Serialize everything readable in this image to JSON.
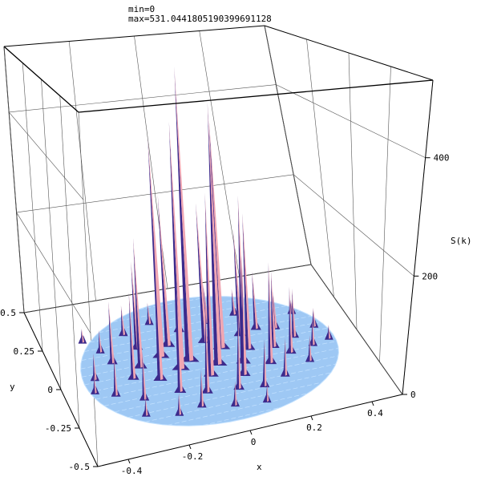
{
  "header": {
    "min_text": "min=0",
    "max_text": "max=531.0441805190399691128"
  },
  "colors": {
    "base": "#9ec8f4",
    "base_light": "#c4e2ff",
    "spike_light": "#f0a6b2",
    "spike_dark": "#3c2a8c",
    "spike_mid": "#8a6fc0",
    "axis": "#000000",
    "grid": "#555555"
  },
  "chart_data": {
    "type": "surface3d",
    "title": "",
    "xlabel": "x",
    "ylabel": "y",
    "zlabel": "S(k)",
    "xlim": [
      -0.5,
      0.5
    ],
    "ylim": [
      -0.5,
      0.5
    ],
    "zlim": [
      0,
      531.04418051904
    ],
    "x_ticks": [
      "-0.4",
      "-0.2",
      "0",
      "0.2",
      "0.4"
    ],
    "y_ticks": [
      "-0.5",
      "-0.25",
      "0",
      "0.25",
      "0.5"
    ],
    "z_ticks": [
      "0",
      "200",
      "400"
    ],
    "grid": true,
    "spikes": [
      {
        "x": -0.06,
        "y": 0.02,
        "z": 531
      },
      {
        "x": 0.02,
        "y": -0.04,
        "z": 470
      },
      {
        "x": -0.14,
        "y": 0.08,
        "z": 400
      },
      {
        "x": -0.1,
        "y": -0.02,
        "z": 440
      },
      {
        "x": 0.06,
        "y": 0.06,
        "z": 420
      },
      {
        "x": -0.02,
        "y": -0.1,
        "z": 320
      },
      {
        "x": 0.1,
        "y": -0.06,
        "z": 300
      },
      {
        "x": -0.18,
        "y": -0.06,
        "z": 260
      },
      {
        "x": 0.14,
        "y": 0.02,
        "z": 250
      },
      {
        "x": -0.22,
        "y": 0.04,
        "z": 230
      },
      {
        "x": 0.08,
        "y": -0.14,
        "z": 210
      },
      {
        "x": -0.1,
        "y": 0.14,
        "z": 280
      },
      {
        "x": 0.18,
        "y": -0.1,
        "z": 180
      },
      {
        "x": -0.26,
        "y": -0.02,
        "z": 150
      },
      {
        "x": 0.02,
        "y": 0.12,
        "z": 260
      },
      {
        "x": 0.22,
        "y": 0.0,
        "z": 140
      },
      {
        "x": -0.2,
        "y": 0.16,
        "z": 160
      },
      {
        "x": 0.14,
        "y": 0.12,
        "z": 200
      },
      {
        "x": -0.06,
        "y": -0.2,
        "z": 150
      },
      {
        "x": 0.26,
        "y": -0.06,
        "z": 120
      },
      {
        "x": -0.3,
        "y": 0.1,
        "z": 110
      },
      {
        "x": 0.04,
        "y": -0.22,
        "z": 130
      },
      {
        "x": 0.2,
        "y": 0.14,
        "z": 110
      },
      {
        "x": -0.14,
        "y": -0.16,
        "z": 180
      },
      {
        "x": 0.3,
        "y": 0.04,
        "z": 90
      },
      {
        "x": -0.34,
        "y": -0.1,
        "z": 70
      },
      {
        "x": 0.12,
        "y": -0.24,
        "z": 80
      },
      {
        "x": -0.04,
        "y": 0.22,
        "z": 120
      },
      {
        "x": 0.26,
        "y": 0.12,
        "z": 70
      },
      {
        "x": -0.26,
        "y": -0.16,
        "z": 80
      },
      {
        "x": 0.34,
        "y": -0.04,
        "z": 50
      },
      {
        "x": -0.38,
        "y": 0.02,
        "z": 45
      },
      {
        "x": 0.06,
        "y": 0.24,
        "z": 75
      },
      {
        "x": -0.1,
        "y": -0.28,
        "z": 60
      },
      {
        "x": 0.2,
        "y": -0.2,
        "z": 65
      },
      {
        "x": -0.32,
        "y": 0.18,
        "z": 40
      },
      {
        "x": 0.38,
        "y": 0.08,
        "z": 35
      },
      {
        "x": -0.22,
        "y": 0.26,
        "z": 55
      },
      {
        "x": 0.0,
        "y": -0.32,
        "z": 40
      },
      {
        "x": 0.3,
        "y": -0.14,
        "z": 45
      },
      {
        "x": 0.16,
        "y": 0.26,
        "z": 50
      },
      {
        "x": -0.4,
        "y": -0.06,
        "z": 30
      },
      {
        "x": -0.18,
        "y": -0.3,
        "z": 35
      },
      {
        "x": 0.4,
        "y": -0.02,
        "z": 25
      },
      {
        "x": -0.36,
        "y": 0.26,
        "z": 25
      },
      {
        "x": 0.1,
        "y": -0.34,
        "z": 28
      },
      {
        "x": 0.34,
        "y": 0.2,
        "z": 25
      },
      {
        "x": -0.28,
        "y": -0.26,
        "z": 30
      },
      {
        "x": -0.12,
        "y": 0.3,
        "z": 40
      }
    ]
  }
}
